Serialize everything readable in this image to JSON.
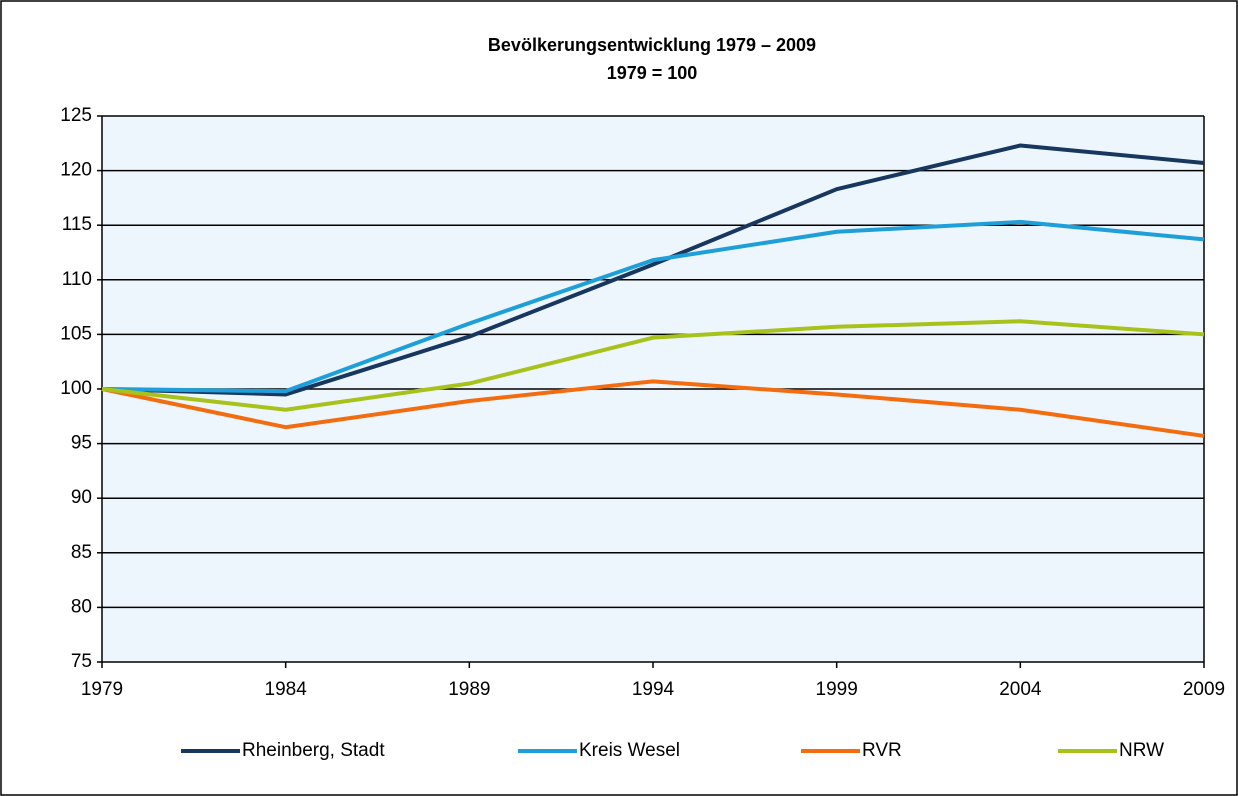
{
  "chart_data": {
    "type": "line",
    "title": "Bevölkerungsentwicklung 1979 – 2009",
    "subtitle": "1979 = 100",
    "x": [
      1979,
      1984,
      1989,
      1994,
      1999,
      2004,
      2009
    ],
    "xlim": [
      1979,
      2009
    ],
    "xticks": [
      1979,
      1984,
      1989,
      1994,
      1999,
      2004,
      2009
    ],
    "ylim": [
      75,
      125
    ],
    "yticks": [
      75,
      80,
      85,
      90,
      95,
      100,
      105,
      110,
      115,
      120,
      125
    ],
    "grid": true,
    "legend": "bottom",
    "series": [
      {
        "name": "Rheinberg, Stadt",
        "color": "#17375e",
        "values": [
          100,
          99.5,
          104.8,
          111.4,
          118.3,
          122.3,
          120.7
        ]
      },
      {
        "name": "Kreis Wesel",
        "color": "#1f9fd9",
        "values": [
          100,
          99.8,
          106.0,
          111.8,
          114.4,
          115.3,
          113.7
        ]
      },
      {
        "name": "RVR",
        "color": "#f36c10",
        "values": [
          100,
          96.5,
          98.9,
          100.7,
          99.5,
          98.1,
          95.7
        ]
      },
      {
        "name": "NRW",
        "color": "#a8c21c",
        "values": [
          100,
          98.1,
          100.5,
          104.7,
          105.7,
          106.2,
          105.0
        ]
      }
    ]
  }
}
